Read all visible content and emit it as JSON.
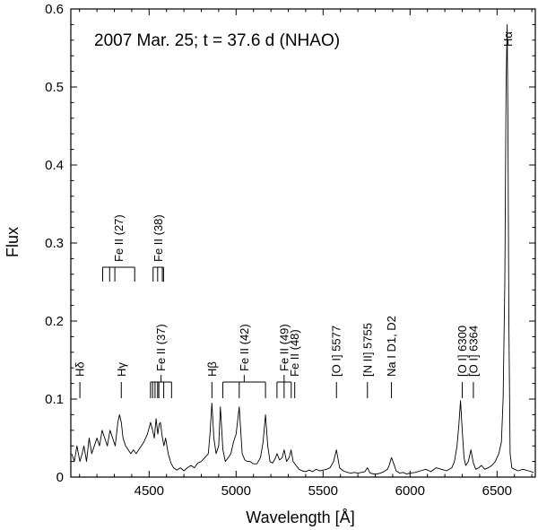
{
  "chart_data": {
    "type": "line",
    "title": "",
    "annotation": "2007 Mar. 25; t = 37.6 d (NHAO)",
    "xlabel": "Wavelength [Å]",
    "ylabel": "Flux",
    "xlim": [
      4050,
      6720
    ],
    "ylim": [
      0,
      0.6
    ],
    "xticks": [
      4500,
      5000,
      5500,
      6000,
      6500
    ],
    "yticks": [
      0,
      0.1,
      0.2,
      0.3,
      0.4,
      0.5,
      0.6
    ],
    "xtick_labels": [
      "4500",
      "5000",
      "5500",
      "6000",
      "6500"
    ],
    "ytick_labels": [
      "0",
      "0.1",
      "0.2",
      "0.3",
      "0.4",
      "0.5",
      "0.6"
    ],
    "grid": false,
    "legend": "none",
    "series": [
      {
        "x": [
          4055,
          4070,
          4085,
          4102,
          4115,
          4125,
          4140,
          4155,
          4170,
          4185,
          4200,
          4215,
          4230,
          4245,
          4260,
          4275,
          4290,
          4305,
          4320,
          4330,
          4340,
          4350,
          4365,
          4380,
          4395,
          4410,
          4425,
          4440,
          4455,
          4470,
          4490,
          4508,
          4520,
          4530,
          4540,
          4550,
          4558,
          4565,
          4575,
          4585,
          4595,
          4610,
          4625,
          4640,
          4660,
          4680,
          4700,
          4720,
          4740,
          4760,
          4780,
          4800,
          4820,
          4840,
          4850,
          4861,
          4872,
          4885,
          4900,
          4910,
          4924,
          4938,
          4955,
          4970,
          4985,
          5000,
          5018,
          5035,
          5050,
          5065,
          5080,
          5100,
          5120,
          5140,
          5155,
          5169,
          5182,
          5195,
          5210,
          5225,
          5235,
          5250,
          5265,
          5276,
          5290,
          5305,
          5316,
          5328,
          5345,
          5362,
          5380,
          5400,
          5420,
          5440,
          5460,
          5480,
          5500,
          5520,
          5540,
          5560,
          5577,
          5595,
          5615,
          5640,
          5660,
          5680,
          5700,
          5720,
          5740,
          5755,
          5770,
          5790,
          5810,
          5830,
          5850,
          5870,
          5880,
          5893,
          5905,
          5920,
          5940,
          5960,
          5980,
          6000,
          6030,
          6060,
          6090,
          6120,
          6150,
          6180,
          6210,
          6240,
          6255,
          6270,
          6280,
          6290,
          6300,
          6310,
          6320,
          6335,
          6350,
          6364,
          6378,
          6395,
          6410,
          6430,
          6450,
          6470,
          6490,
          6510,
          6525,
          6535,
          6545,
          6552,
          6558,
          6563,
          6568,
          6575,
          6585,
          6600,
          6620,
          6650,
          6680,
          6710
        ],
        "y": [
          0.03,
          0.02,
          0.04,
          0.02,
          0.03,
          0.04,
          0.02,
          0.05,
          0.03,
          0.04,
          0.05,
          0.04,
          0.06,
          0.05,
          0.04,
          0.06,
          0.05,
          0.04,
          0.07,
          0.08,
          0.07,
          0.05,
          0.04,
          0.035,
          0.03,
          0.035,
          0.03,
          0.035,
          0.04,
          0.045,
          0.055,
          0.07,
          0.06,
          0.05,
          0.075,
          0.055,
          0.068,
          0.07,
          0.052,
          0.04,
          0.05,
          0.03,
          0.018,
          0.012,
          0.009,
          0.012,
          0.008,
          0.012,
          0.015,
          0.012,
          0.018,
          0.02,
          0.025,
          0.03,
          0.055,
          0.095,
          0.05,
          0.03,
          0.04,
          0.09,
          0.035,
          0.02,
          0.025,
          0.03,
          0.045,
          0.055,
          0.09,
          0.03,
          0.022,
          0.02,
          0.02,
          0.017,
          0.017,
          0.025,
          0.045,
          0.08,
          0.04,
          0.02,
          0.018,
          0.024,
          0.03,
          0.022,
          0.025,
          0.035,
          0.02,
          0.025,
          0.035,
          0.02,
          0.015,
          0.01,
          0.008,
          0.007,
          0.009,
          0.007,
          0.01,
          0.008,
          0.009,
          0.01,
          0.012,
          0.02,
          0.035,
          0.012,
          0.008,
          0.006,
          0.005,
          0.006,
          0.005,
          0.006,
          0.007,
          0.012,
          0.005,
          0.004,
          0.004,
          0.005,
          0.007,
          0.01,
          0.015,
          0.025,
          0.018,
          0.008,
          0.005,
          0.006,
          0.004,
          0.005,
          0.006,
          0.008,
          0.01,
          0.007,
          0.012,
          0.01,
          0.008,
          0.012,
          0.02,
          0.04,
          0.065,
          0.098,
          0.06,
          0.025,
          0.015,
          0.02,
          0.035,
          0.018,
          0.01,
          0.012,
          0.015,
          0.01,
          0.012,
          0.015,
          0.02,
          0.03,
          0.045,
          0.1,
          0.25,
          0.5,
          0.58,
          0.45,
          0.2,
          0.03,
          0.012,
          0.01,
          0.008,
          0.01,
          0.008,
          0.006
        ]
      }
    ],
    "line_ids": [
      {
        "label": "Hδ",
        "wl": 4102
      },
      {
        "label": "Hγ",
        "wl": 4340
      },
      {
        "label": "Fe II (37)",
        "wl": 4555,
        "comb": [
          4508,
          4520,
          4534,
          4549,
          4556,
          4584,
          4629
        ]
      },
      {
        "label": "Hβ",
        "wl": 4861
      },
      {
        "label": "Fe II (42)",
        "wl": 5018,
        "comb": [
          4924,
          5018,
          5169
        ]
      },
      {
        "label": "Fe II (49)",
        "wl": 5276,
        "comb": [
          5235,
          5276,
          5317
        ]
      },
      {
        "label": "Fe II (48)",
        "wl": 5337,
        "comb": [
          5337
        ]
      },
      {
        "label": "[O I] 5577",
        "wl": 5577
      },
      {
        "label": "[N II] 5755",
        "wl": 5755
      },
      {
        "label": "Na I D1, D2",
        "wl": 5893
      },
      {
        "label": "[O I] 6300",
        "wl": 6300
      },
      {
        "label": "[O I] 6364",
        "wl": 6364
      },
      {
        "label": "Hα",
        "wl": 6563
      }
    ],
    "upper_ids": [
      {
        "label": "Fe II (27)",
        "comb": [
          4233,
          4273,
          4303,
          4417
        ]
      },
      {
        "label": "Fe II (38)",
        "comb": [
          4523,
          4549,
          4576,
          4583
        ]
      }
    ]
  }
}
